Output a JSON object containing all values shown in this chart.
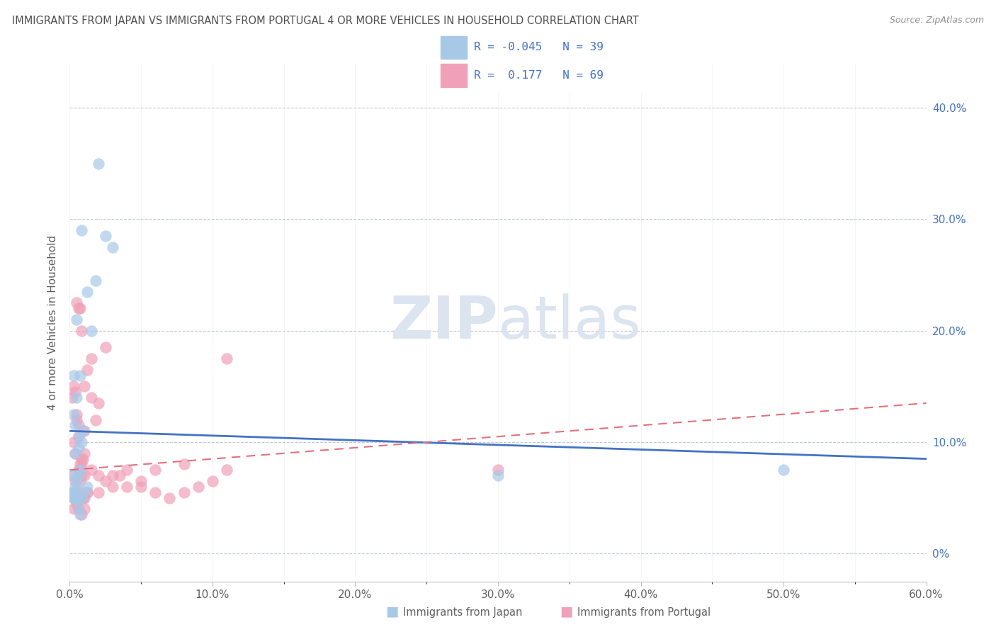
{
  "title": "IMMIGRANTS FROM JAPAN VS IMMIGRANTS FROM PORTUGAL 4 OR MORE VEHICLES IN HOUSEHOLD CORRELATION CHART",
  "source": "Source: ZipAtlas.com",
  "ylabel_left": "4 or more Vehicles in Household",
  "x_tick_labels": [
    "0.0%",
    "",
    "10.0%",
    "",
    "20.0%",
    "",
    "30.0%",
    "",
    "40.0%",
    "",
    "50.0%",
    "",
    "60.0%"
  ],
  "x_tick_vals": [
    0.0,
    5.0,
    10.0,
    15.0,
    20.0,
    25.0,
    30.0,
    35.0,
    40.0,
    45.0,
    50.0,
    55.0,
    60.0
  ],
  "x_label_vals": [
    0.0,
    10.0,
    20.0,
    30.0,
    40.0,
    50.0,
    60.0
  ],
  "x_label_strs": [
    "0.0%",
    "10.0%",
    "20.0%",
    "30.0%",
    "40.0%",
    "50.0%",
    "60.0%"
  ],
  "y_tick_vals": [
    0.0,
    10.0,
    20.0,
    30.0,
    40.0
  ],
  "y_tick_labels_right": [
    "0%",
    "10.0%",
    "20.0%",
    "30.0%",
    "40.0%"
  ],
  "xlim": [
    0.0,
    60.0
  ],
  "ylim": [
    -2.5,
    44.0
  ],
  "japan_R": -0.045,
  "japan_N": 39,
  "portugal_R": 0.177,
  "portugal_N": 69,
  "japan_color": "#a8c8e8",
  "portugal_color": "#f0a0b8",
  "japan_line_color": "#4472c4",
  "portugal_line_color": "#e07080",
  "legend_text_color": "#4472c4",
  "title_color": "#505050",
  "source_color": "#909090",
  "grid_color": "#c0c8d8",
  "watermark_color": "#dce4f0",
  "bottom_label_japan": "Immigrants from Japan",
  "bottom_label_portugal": "Immigrants from Portugal",
  "japan_x": [
    2.0,
    0.8,
    2.5,
    1.2,
    1.8,
    0.5,
    1.5,
    3.0,
    0.3,
    0.5,
    0.7,
    0.3,
    0.4,
    0.6,
    0.8,
    0.4,
    0.6,
    0.9,
    0.5,
    0.6,
    0.7,
    1.0,
    1.2,
    0.3,
    0.2,
    0.4,
    0.2,
    0.3,
    0.5,
    0.4,
    30.0,
    50.0,
    0.8,
    0.6,
    0.3,
    0.5,
    0.4,
    0.7,
    0.6
  ],
  "japan_y": [
    35.0,
    29.0,
    28.5,
    23.5,
    24.5,
    21.0,
    20.0,
    27.5,
    16.0,
    14.0,
    16.0,
    12.5,
    11.5,
    10.5,
    10.0,
    9.0,
    9.5,
    11.0,
    6.5,
    7.0,
    7.5,
    5.5,
    6.0,
    5.0,
    5.5,
    5.0,
    7.0,
    5.5,
    5.5,
    6.0,
    7.0,
    7.5,
    5.0,
    5.0,
    5.5,
    5.0,
    5.0,
    3.5,
    4.0
  ],
  "portugal_x": [
    0.2,
    0.3,
    0.4,
    0.5,
    0.6,
    0.5,
    0.7,
    0.8,
    0.6,
    1.0,
    0.8,
    1.2,
    1.5,
    1.0,
    1.5,
    2.0,
    1.8,
    2.5,
    0.3,
    0.4,
    0.5,
    0.6,
    0.7,
    0.8,
    0.9,
    1.0,
    0.3,
    0.4,
    0.6,
    0.7,
    0.8,
    1.0,
    1.5,
    2.0,
    2.5,
    3.0,
    3.5,
    4.0,
    5.0,
    6.0,
    7.0,
    8.0,
    9.0,
    10.0,
    11.0,
    0.3,
    0.5,
    0.7,
    0.9,
    1.0,
    1.2,
    2.0,
    3.0,
    4.0,
    5.0,
    6.0,
    0.3,
    0.5,
    0.6,
    0.8,
    1.0,
    30.0,
    8.0,
    11.0,
    0.4,
    0.5,
    0.6,
    0.8,
    1.2
  ],
  "portugal_y": [
    14.0,
    15.0,
    14.5,
    22.5,
    22.0,
    12.5,
    22.0,
    20.0,
    11.5,
    15.0,
    8.5,
    16.5,
    17.5,
    11.0,
    14.0,
    13.5,
    12.0,
    18.5,
    10.0,
    9.0,
    12.0,
    10.5,
    8.0,
    8.0,
    8.5,
    9.0,
    7.0,
    6.5,
    7.5,
    6.5,
    7.0,
    7.0,
    7.5,
    7.0,
    6.5,
    7.0,
    7.0,
    7.5,
    6.0,
    5.5,
    5.0,
    5.5,
    6.0,
    6.5,
    17.5,
    5.0,
    5.0,
    5.5,
    5.0,
    5.0,
    5.5,
    5.5,
    6.0,
    6.0,
    6.5,
    7.5,
    4.0,
    4.5,
    4.0,
    3.5,
    4.0,
    7.5,
    8.0,
    7.5,
    5.0,
    5.5,
    5.0,
    5.0,
    5.5
  ],
  "japan_line_x0": 0.0,
  "japan_line_y0": 11.0,
  "japan_line_x1": 60.0,
  "japan_line_y1": 8.5,
  "portugal_line_x0": 0.0,
  "portugal_line_y0": 7.5,
  "portugal_line_x1": 60.0,
  "portugal_line_y1": 13.5
}
